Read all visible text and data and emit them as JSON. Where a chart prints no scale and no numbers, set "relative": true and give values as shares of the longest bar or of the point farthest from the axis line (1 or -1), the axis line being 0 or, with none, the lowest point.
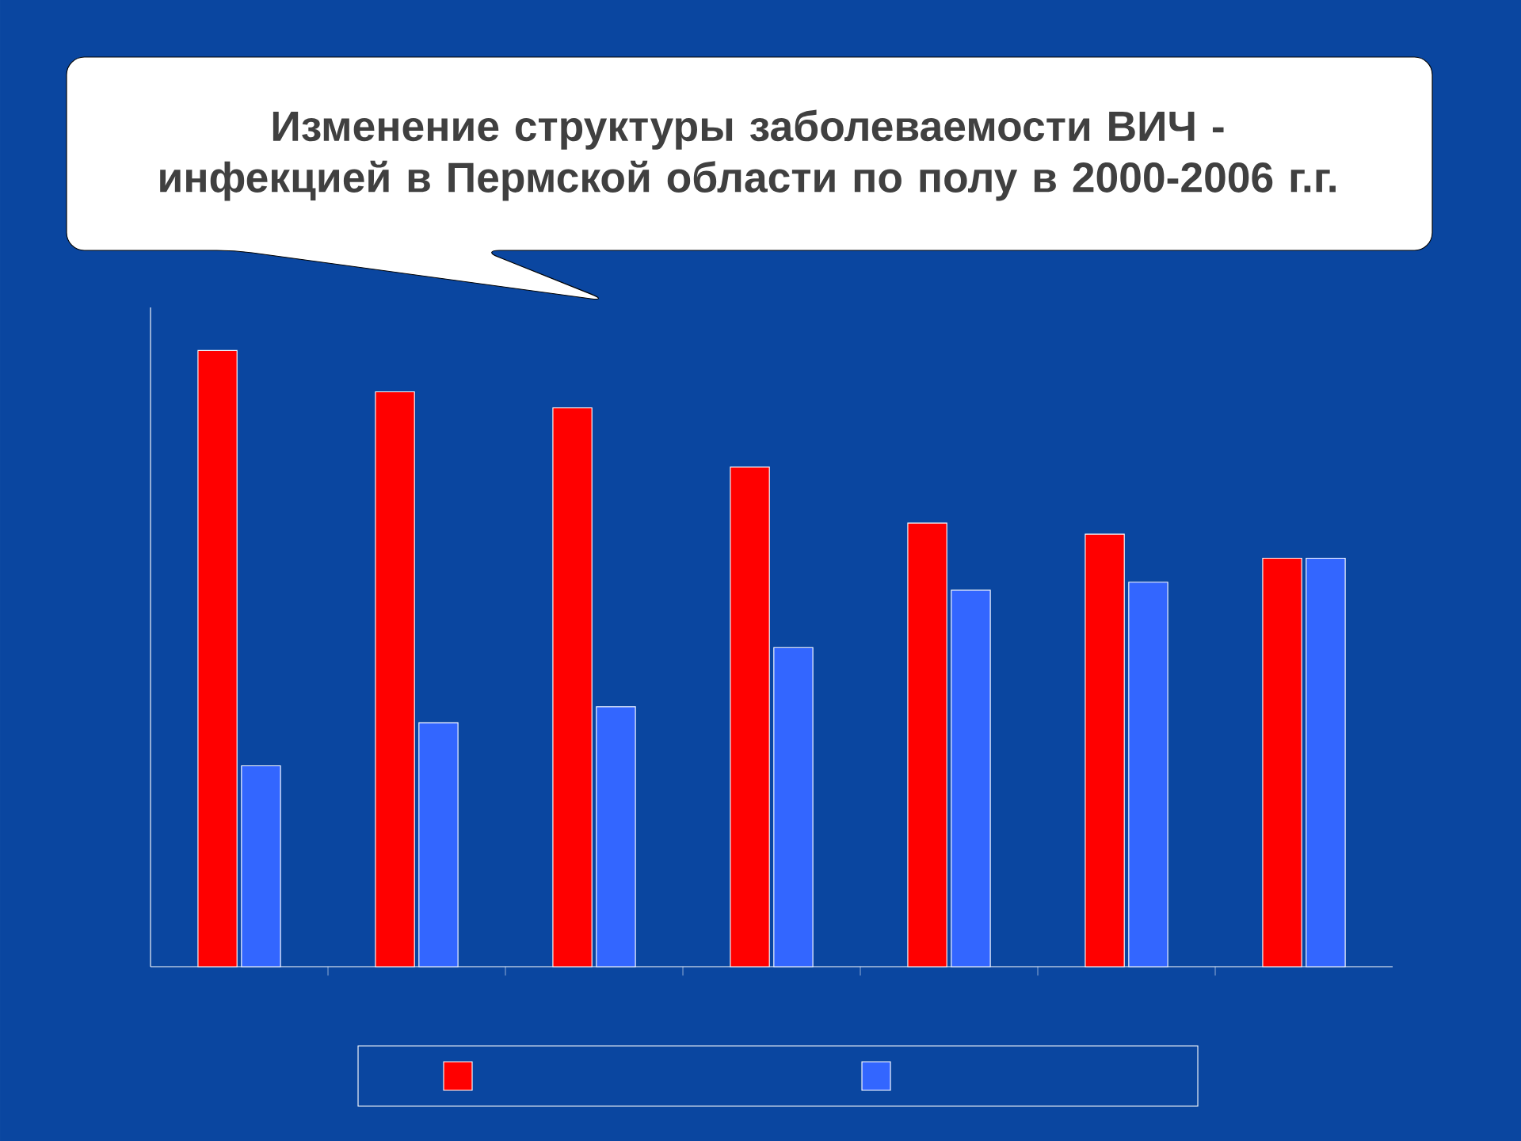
{
  "chart_data": {
    "type": "bar",
    "title": "Изменение структуры заболеваемости ВИЧ - инфекцией в Пермской области по полу в 2000-2006 г.г.",
    "categories": [
      null,
      null,
      null,
      null,
      null,
      null,
      null
    ],
    "relative": true,
    "series": [
      {
        "color": "#ff0000",
        "values": [
          1,
          0.933,
          0.907,
          0.811,
          0.72,
          0.702,
          0.663
        ]
      },
      {
        "color": "#3366ff",
        "values": [
          0.326,
          0.396,
          0.422,
          0.518,
          0.611,
          0.624,
          0.663
        ]
      }
    ]
  }
}
